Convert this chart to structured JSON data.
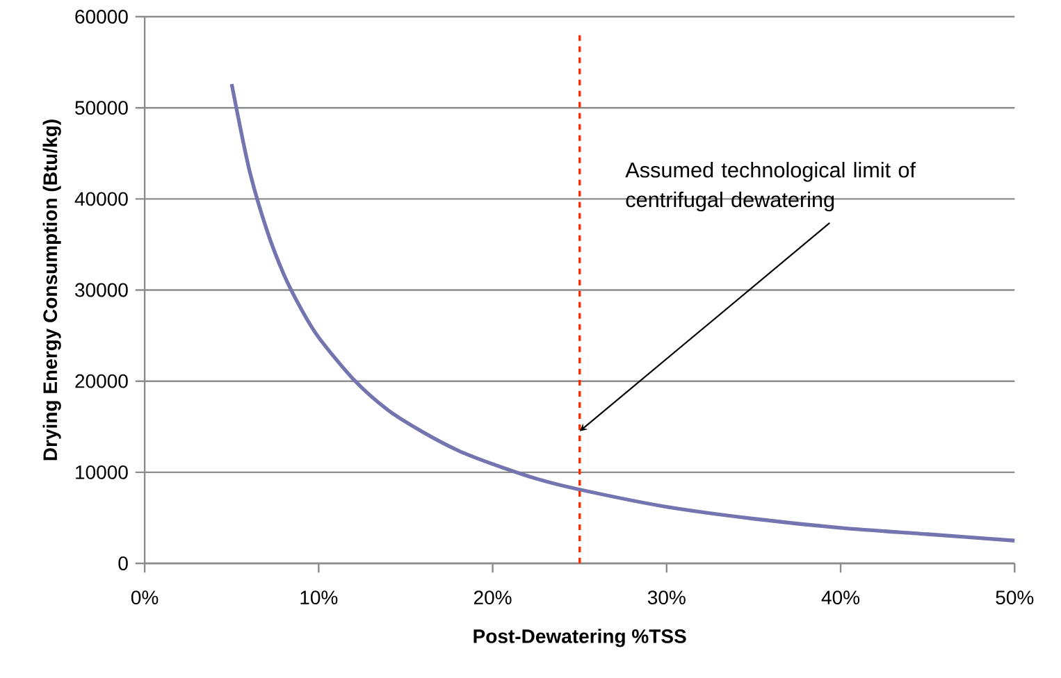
{
  "chart_data": {
    "type": "line",
    "xlabel": "Post-Dewatering %TSS",
    "ylabel": "Drying Energy Consumption (Btu/kg)",
    "series": [
      {
        "color": "#7474b0",
        "x": [
          5,
          6,
          7,
          8,
          9,
          10,
          12,
          14,
          16,
          18,
          20,
          22.5,
          25,
          30,
          35,
          40,
          45,
          50
        ],
        "values": [
          52600,
          43300,
          36700,
          31700,
          27900,
          24800,
          20200,
          16800,
          14400,
          12400,
          10900,
          9300,
          8100,
          6200,
          4900,
          3900,
          3200,
          2500
        ]
      }
    ],
    "xlim": [
      0,
      50
    ],
    "ylim": [
      0,
      60000
    ],
    "xticks": [
      {
        "value": 0,
        "label": "0%"
      },
      {
        "value": 10,
        "label": "10%"
      },
      {
        "value": 20,
        "label": "20%"
      },
      {
        "value": 30,
        "label": "30%"
      },
      {
        "value": 40,
        "label": "40%"
      },
      {
        "value": 50,
        "label": "50%"
      }
    ],
    "yticks": [
      0,
      10000,
      20000,
      30000,
      40000,
      50000,
      60000
    ],
    "grid": "y",
    "marker": "none",
    "line_style": "solid",
    "ref_lines": [
      {
        "axis": "x",
        "value": 25,
        "color": "#ff2a00",
        "line_style": "dashed"
      }
    ],
    "annotations": [
      {
        "text": "Assumed technological limit of centrifugal dewatering",
        "x": 25,
        "y": 14500
      }
    ]
  }
}
